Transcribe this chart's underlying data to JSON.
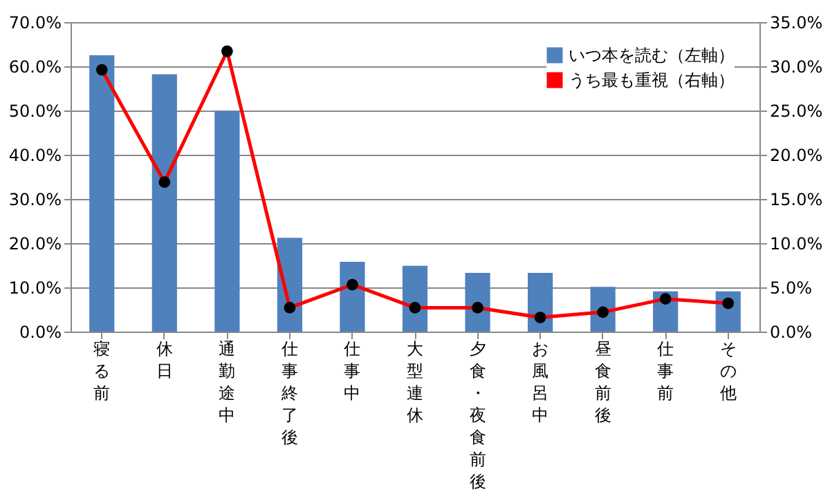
{
  "chart_data": {
    "type": "bar",
    "categories": [
      "寝る前",
      "休日",
      "通勤途中",
      "仕事終了後",
      "仕事中",
      "大型連休",
      "夕食・夜食前後",
      "お風呂中",
      "昼食前後",
      "仕事前",
      "その他"
    ],
    "series": [
      {
        "name": "いつ本を読む（左軸）",
        "color": "#4f81bd",
        "values": [
          62.5,
          58.2,
          49.9,
          21.2,
          15.8,
          14.9,
          13.3,
          13.3,
          10.1,
          9.1,
          9.1
        ]
      },
      {
        "name": "うち最も重視（右軸）",
        "type": "line",
        "axis": "y2",
        "color": "#ff0000",
        "marker": "circle",
        "values": [
          29.6,
          16.9,
          31.7,
          2.7,
          5.3,
          2.7,
          2.7,
          1.6,
          2.2,
          3.7,
          3.2
        ]
      }
    ],
    "ylim": [
      0,
      70
    ],
    "yticks": [
      {
        "value": 0,
        "label": "0.0%"
      },
      {
        "value": 10,
        "label": "10.0%"
      },
      {
        "value": 20,
        "label": "20.0%"
      },
      {
        "value": 30,
        "label": "30.0%"
      },
      {
        "value": 40,
        "label": "40.0%"
      },
      {
        "value": 50,
        "label": "50.0%"
      },
      {
        "value": 60,
        "label": "60.0%"
      },
      {
        "value": 70,
        "label": "70.0%"
      }
    ],
    "y2lim": [
      0,
      35
    ],
    "y2ticks": [
      {
        "value": 0,
        "label": "0.0%"
      },
      {
        "value": 5,
        "label": "5.0%"
      },
      {
        "value": 10,
        "label": "10.0%"
      },
      {
        "value": 15,
        "label": "15.0%"
      },
      {
        "value": 20,
        "label": "20.0%"
      },
      {
        "value": 25,
        "label": "25.0%"
      },
      {
        "value": 30,
        "label": "30.0%"
      },
      {
        "value": 35,
        "label": "35.0%"
      }
    ],
    "grid": "y",
    "legend": "top right"
  }
}
